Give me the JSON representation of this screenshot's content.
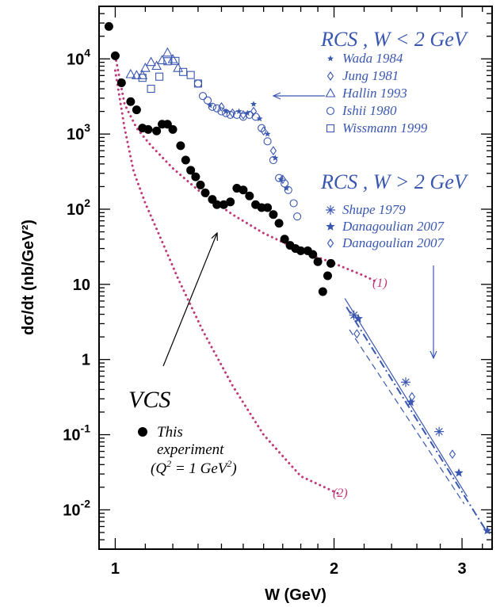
{
  "chart_data": {
    "type": "scatter",
    "xlabel": "W (GeV)",
    "ylabel": "dσ/dt (nb/GeV²)",
    "xscale": "log",
    "yscale": "log",
    "xlim": [
      0.95,
      3.3
    ],
    "ylim": [
      0.003,
      50000
    ],
    "x_ticks": [
      {
        "value": 1,
        "label": "1"
      },
      {
        "value": 2,
        "label": "2"
      },
      {
        "value": 3,
        "label": "3"
      }
    ],
    "y_ticks": [
      {
        "value": 0.01,
        "base": "10",
        "exp": "-2"
      },
      {
        "value": 0.1,
        "base": "10",
        "exp": "-1"
      },
      {
        "value": 1,
        "base": "1",
        "exp": ""
      },
      {
        "value": 10,
        "base": "10",
        "exp": ""
      },
      {
        "value": 100,
        "base": "10",
        "exp": "2"
      },
      {
        "value": 1000,
        "base": "10",
        "exp": "3"
      },
      {
        "value": 10000,
        "base": "10",
        "exp": "4"
      }
    ],
    "colors": {
      "vcs": "#000000",
      "rcs": "#3a57b0",
      "curves": "#c0387a"
    },
    "legend_rcs_low": {
      "title": "RCS , W < 2 GeV",
      "entries": [
        "Wada 1984",
        "Jung 1981",
        "Hallin 1993",
        "Ishii 1980",
        "Wissmann 1999"
      ]
    },
    "legend_rcs_high": {
      "title": "RCS , W > 2 GeV",
      "entries": [
        "Shupe 1979",
        "Danagoulian 2007",
        "Danagoulian 2007"
      ]
    },
    "legend_vcs": {
      "title": "VCS",
      "line1": "This",
      "line2": "experiment",
      "q_label": "(Q",
      "q_sup": "2",
      "q_eq": " = 1 GeV",
      "q_close": ")"
    },
    "curve_labels": {
      "c1": "(1)",
      "c2": "(2)"
    },
    "series": [
      {
        "marker": "filled-circle",
        "color": "#000000",
        "points": [
          [
            0.98,
            27000
          ],
          [
            1.0,
            11000
          ],
          [
            1.02,
            4800
          ],
          [
            1.05,
            2700
          ],
          [
            1.07,
            2100
          ],
          [
            1.09,
            1200
          ],
          [
            1.11,
            1150
          ],
          [
            1.14,
            1100
          ],
          [
            1.16,
            1350
          ],
          [
            1.18,
            1350
          ],
          [
            1.2,
            1150
          ],
          [
            1.23,
            700
          ],
          [
            1.25,
            450
          ],
          [
            1.27,
            330
          ],
          [
            1.29,
            270
          ],
          [
            1.31,
            210
          ],
          [
            1.33,
            165
          ],
          [
            1.36,
            135
          ],
          [
            1.38,
            115
          ],
          [
            1.41,
            115
          ],
          [
            1.44,
            125
          ],
          [
            1.47,
            190
          ],
          [
            1.5,
            180
          ],
          [
            1.53,
            150
          ],
          [
            1.56,
            115
          ],
          [
            1.59,
            105
          ],
          [
            1.62,
            105
          ],
          [
            1.65,
            85
          ],
          [
            1.68,
            65
          ],
          [
            1.71,
            40
          ],
          [
            1.74,
            33
          ],
          [
            1.77,
            30
          ],
          [
            1.8,
            28
          ],
          [
            1.84,
            28
          ],
          [
            1.87,
            25
          ],
          [
            1.9,
            20
          ],
          [
            1.93,
            8
          ],
          [
            1.96,
            13
          ],
          [
            1.98,
            19
          ]
        ]
      },
      {
        "marker": "open-triangle",
        "color": "#3a57b0",
        "points": [
          [
            1.05,
            6200
          ],
          [
            1.07,
            6000
          ],
          [
            1.09,
            6000
          ],
          [
            1.1,
            7500
          ],
          [
            1.12,
            9000
          ],
          [
            1.14,
            8000
          ],
          [
            1.16,
            9500
          ],
          [
            1.18,
            12000
          ],
          [
            1.2,
            9800
          ],
          [
            1.22,
            7500
          ]
        ]
      },
      {
        "marker": "open-square",
        "color": "#3a57b0",
        "points": [
          [
            1.09,
            5600
          ],
          [
            1.12,
            4000
          ],
          [
            1.15,
            5800
          ],
          [
            1.18,
            9300
          ],
          [
            1.21,
            9400
          ],
          [
            1.24,
            6700
          ],
          [
            1.27,
            6100
          ],
          [
            1.3,
            4700
          ]
        ]
      },
      {
        "marker": "open-circle",
        "color": "#3a57b0",
        "points": [
          [
            1.3,
            4700
          ],
          [
            1.32,
            3200
          ],
          [
            1.34,
            2800
          ],
          [
            1.36,
            2300
          ],
          [
            1.38,
            2200
          ],
          [
            1.4,
            2000
          ],
          [
            1.42,
            1900
          ],
          [
            1.44,
            1800
          ],
          [
            1.47,
            1800
          ],
          [
            1.5,
            1700
          ],
          [
            1.53,
            1800
          ],
          [
            1.56,
            1700
          ],
          [
            1.59,
            1200
          ],
          [
            1.62,
            800
          ],
          [
            1.65,
            450
          ],
          [
            1.68,
            260
          ],
          [
            1.71,
            220
          ],
          [
            1.73,
            180
          ],
          [
            1.76,
            120
          ],
          [
            1.78,
            80
          ]
        ]
      },
      {
        "marker": "diamond",
        "color": "#3a57b0",
        "points": [
          [
            1.4,
            2300
          ],
          [
            1.45,
            1900
          ],
          [
            1.5,
            1800
          ],
          [
            1.55,
            2000
          ],
          [
            1.6,
            1100
          ],
          [
            1.65,
            600
          ],
          [
            1.7,
            250
          ],
          [
            2.15,
            2.2
          ],
          [
            2.56,
            0.32
          ],
          [
            2.91,
            0.055
          ]
        ]
      },
      {
        "marker": "small-star",
        "color": "#3a57b0",
        "points": [
          [
            1.35,
            2400
          ],
          [
            1.42,
            2000
          ],
          [
            1.48,
            2000
          ],
          [
            1.52,
            1900
          ],
          [
            1.55,
            2500
          ],
          [
            1.58,
            1600
          ],
          [
            1.62,
            1000
          ],
          [
            1.66,
            480
          ],
          [
            1.69,
            250
          ],
          [
            1.72,
            190
          ]
        ]
      },
      {
        "marker": "asterisk",
        "color": "#3a57b0",
        "points": [
          [
            2.13,
            3.9
          ],
          [
            2.51,
            0.5
          ],
          [
            2.79,
            0.11
          ]
        ]
      },
      {
        "marker": "star",
        "color": "#3a57b0",
        "points": [
          [
            2.16,
            3.5
          ],
          [
            2.55,
            0.27
          ],
          [
            2.97,
            0.031
          ],
          [
            3.25,
            0.0053
          ]
        ]
      }
    ],
    "curves": {
      "c1": [
        [
          1.0,
          11000
        ],
        [
          1.03,
          2500
        ],
        [
          1.07,
          1200
        ],
        [
          1.12,
          700
        ],
        [
          1.2,
          350
        ],
        [
          1.3,
          180
        ],
        [
          1.45,
          85
        ],
        [
          1.6,
          48
        ],
        [
          1.8,
          28
        ],
        [
          2.0,
          19
        ],
        [
          2.2,
          13
        ],
        [
          2.28,
          11
        ]
      ],
      "c2": [
        [
          1.0,
          7000
        ],
        [
          1.03,
          1200
        ],
        [
          1.06,
          320
        ],
        [
          1.1,
          120
        ],
        [
          1.15,
          45
        ],
        [
          1.22,
          12
        ],
        [
          1.32,
          2.4
        ],
        [
          1.45,
          0.45
        ],
        [
          1.6,
          0.1
        ],
        [
          1.8,
          0.028
        ],
        [
          2.04,
          0.016
        ]
      ],
      "fit_solid": [
        [
          2.07,
          6.5
        ],
        [
          3.05,
          0.015
        ]
      ],
      "fit_dashdot": [
        [
          2.08,
          5.0
        ],
        [
          3.25,
          0.005
        ]
      ],
      "fit_dashed": [
        [
          2.1,
          2.5
        ],
        [
          3.02,
          0.012
        ]
      ]
    }
  }
}
